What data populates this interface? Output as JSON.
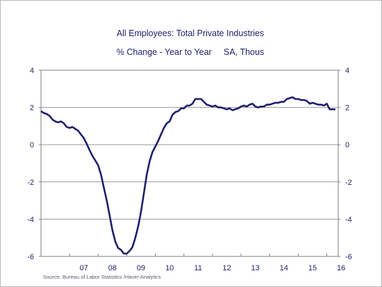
{
  "chart_data": {
    "type": "line",
    "title": "All Employees: Total Private Industries",
    "subtitle": "% Change - Year to Year     SA, Thous",
    "source": "Source:  Bureau of Labor Statistics /Haver Analytics",
    "xlabel": "",
    "ylabel": "",
    "xlim": [
      2006.0,
      2016.4
    ],
    "ylim": [
      -6,
      4
    ],
    "y_ticks": [
      4,
      2,
      0,
      -2,
      -4,
      -6
    ],
    "x_tick_labels": [
      "07",
      "08",
      "09",
      "10",
      "11",
      "12",
      "13",
      "14",
      "15",
      "16"
    ],
    "x_tick_positions": [
      2007.5,
      2008.5,
      2009.5,
      2010.5,
      2011.5,
      2012.5,
      2013.5,
      2014.5,
      2015.5,
      2016.5
    ],
    "grid": "horizontal",
    "line_color": "#1c1f6b",
    "series": [
      {
        "x": [
          2006.0,
          2006.1,
          2006.2,
          2006.3,
          2006.4,
          2006.5,
          2006.6,
          2006.7,
          2006.8,
          2006.9,
          2007.0,
          2007.1,
          2007.2,
          2007.3,
          2007.4,
          2007.5,
          2007.6,
          2007.7,
          2007.8,
          2007.9,
          2008.0,
          2008.1,
          2008.2,
          2008.3,
          2008.4,
          2008.5,
          2008.6,
          2008.7,
          2008.8,
          2008.9,
          2009.0,
          2009.1,
          2009.2,
          2009.3,
          2009.4,
          2009.5,
          2009.6,
          2009.7,
          2009.8,
          2009.9,
          2010.0,
          2010.1,
          2010.2,
          2010.3,
          2010.4,
          2010.5,
          2010.6,
          2010.7,
          2010.8,
          2010.9,
          2011.0,
          2011.1,
          2011.2,
          2011.3,
          2011.4,
          2011.5,
          2011.6,
          2011.7,
          2011.8,
          2011.9,
          2012.0,
          2012.1,
          2012.2,
          2012.3,
          2012.4,
          2012.5,
          2012.6,
          2012.7,
          2012.8,
          2012.9,
          2013.0,
          2013.1,
          2013.2,
          2013.3,
          2013.4,
          2013.5,
          2013.6,
          2013.7,
          2013.8,
          2013.9,
          2014.0,
          2014.1,
          2014.2,
          2014.3,
          2014.4,
          2014.5,
          2014.6,
          2014.7,
          2014.8,
          2014.9,
          2015.0,
          2015.1,
          2015.2,
          2015.3,
          2015.4,
          2015.5,
          2015.6,
          2015.7,
          2015.8,
          2015.9,
          2016.0,
          2016.1,
          2016.2,
          2016.3
        ],
        "values": [
          1.8,
          1.7,
          1.65,
          1.55,
          1.35,
          1.25,
          1.2,
          1.25,
          1.15,
          0.95,
          0.9,
          0.95,
          0.85,
          0.75,
          0.55,
          0.35,
          0.05,
          -0.3,
          -0.6,
          -0.85,
          -1.1,
          -1.6,
          -2.3,
          -3.0,
          -3.8,
          -4.6,
          -5.2,
          -5.55,
          -5.65,
          -5.85,
          -5.85,
          -5.7,
          -5.5,
          -5.0,
          -4.4,
          -3.6,
          -2.6,
          -1.6,
          -0.9,
          -0.4,
          -0.1,
          0.2,
          0.55,
          0.9,
          1.15,
          1.25,
          1.6,
          1.75,
          1.8,
          1.95,
          1.95,
          2.1,
          2.1,
          2.2,
          2.45,
          2.45,
          2.45,
          2.3,
          2.15,
          2.1,
          2.05,
          2.1,
          2.0,
          2.0,
          1.95,
          1.9,
          1.95,
          1.85,
          1.9,
          1.95,
          2.05,
          2.1,
          2.05,
          2.15,
          2.2,
          2.05,
          2.0,
          2.05,
          2.05,
          2.15,
          2.15,
          2.2,
          2.25,
          2.25,
          2.3,
          2.3,
          2.45,
          2.5,
          2.55,
          2.45,
          2.45,
          2.4,
          2.4,
          2.35,
          2.2,
          2.25,
          2.2,
          2.15,
          2.15,
          2.1,
          2.2,
          1.9,
          1.9,
          1.9
        ]
      }
    ]
  }
}
